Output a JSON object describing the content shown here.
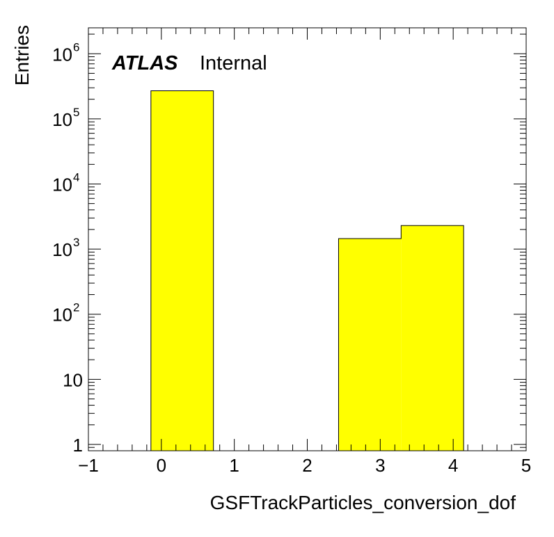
{
  "chart_data": {
    "type": "bar",
    "title": "",
    "xlabel": "GSFTrackParticles_conversion_dof",
    "ylabel": "Entries",
    "xlim": [
      -1,
      5
    ],
    "ylim": [
      0.8,
      2500000
    ],
    "yscale": "log",
    "grid": false,
    "fill_color": "#ffff00",
    "edge_color": "#000000",
    "bins": [
      {
        "low": -0.143,
        "high": 0.714,
        "value": 270000
      },
      {
        "low": 0.714,
        "high": 1.571,
        "value": 0
      },
      {
        "low": 1.571,
        "high": 2.429,
        "value": 0
      },
      {
        "low": 2.429,
        "high": 3.286,
        "value": 1450
      },
      {
        "low": 3.286,
        "high": 4.143,
        "value": 2300
      }
    ],
    "x_ticks": [
      {
        "value": -1,
        "label": "−1"
      },
      {
        "value": 0,
        "label": "0"
      },
      {
        "value": 1,
        "label": "1"
      },
      {
        "value": 2,
        "label": "2"
      },
      {
        "value": 3,
        "label": "3"
      },
      {
        "value": 4,
        "label": "4"
      },
      {
        "value": 5,
        "label": "5"
      }
    ],
    "y_ticks": [
      {
        "value": 1,
        "base": "1",
        "exp": ""
      },
      {
        "value": 10,
        "base": "10",
        "exp": ""
      },
      {
        "value": 100,
        "base": "10",
        "exp": "2"
      },
      {
        "value": 1000,
        "base": "10",
        "exp": "3"
      },
      {
        "value": 10000,
        "base": "10",
        "exp": "4"
      },
      {
        "value": 100000,
        "base": "10",
        "exp": "5"
      },
      {
        "value": 1000000,
        "base": "10",
        "exp": "6"
      }
    ]
  },
  "labels": {
    "atlas": "ATLAS",
    "internal": "Internal"
  }
}
